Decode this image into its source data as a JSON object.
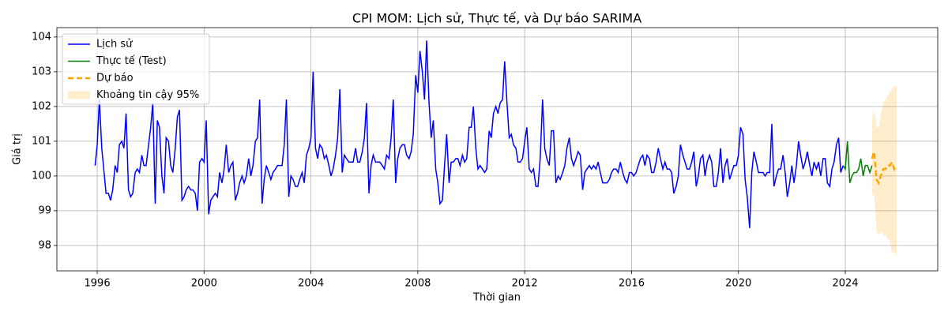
{
  "chart_data": {
    "type": "line",
    "title": "CPI MOM: Lịch sử, Thực tế, và Dự báo SARIMA",
    "xlabel": "Thời gian",
    "ylabel": "Giá trị",
    "xlim": [
      1994.49,
      2027.46
    ],
    "xticks": [
      1996,
      2000,
      2004,
      2008,
      2012,
      2016,
      2020,
      2024
    ],
    "ylim": [
      97.27,
      104.27
    ],
    "yticks": [
      98,
      99,
      100,
      101,
      102,
      103,
      104
    ],
    "grid": true,
    "legend": "upper left",
    "series": [
      {
        "name": "Lịch sử",
        "color": "#0000ff",
        "dash": false,
        "x": [
          1995.92,
          1996,
          1996.08,
          1996.17,
          1996.33,
          1996.42,
          1996.5,
          1996.58,
          1996.67,
          1996.75,
          1996.83,
          1996.92,
          1997,
          1997.08,
          1997.17,
          1997.25,
          1997.33,
          1997.42,
          1997.5,
          1997.58,
          1997.67,
          1997.75,
          1997.83,
          1998,
          1998.08,
          1998.17,
          1998.25,
          1998.33,
          1998.42,
          1998.5,
          1998.58,
          1998.67,
          1998.75,
          1998.83,
          1998.92,
          1999,
          1999.08,
          1999.17,
          1999.25,
          1999.33,
          1999.42,
          1999.5,
          1999.58,
          1999.67,
          1999.75,
          1999.83,
          1999.92,
          2000,
          2000.08,
          2000.17,
          2000.25,
          2000.33,
          2000.42,
          2000.5,
          2000.58,
          2000.67,
          2000.75,
          2000.83,
          2000.92,
          2001,
          2001.08,
          2001.17,
          2001.25,
          2001.33,
          2001.42,
          2001.5,
          2001.58,
          2001.67,
          2001.75,
          2001.83,
          2001.92,
          2002,
          2002.08,
          2002.17,
          2002.25,
          2002.33,
          2002.42,
          2002.5,
          2002.58,
          2002.67,
          2002.75,
          2002.83,
          2002.92,
          2003,
          2003.08,
          2003.17,
          2003.25,
          2003.33,
          2003.42,
          2003.5,
          2003.58,
          2003.67,
          2003.75,
          2003.83,
          2003.92,
          2004,
          2004.08,
          2004.17,
          2004.25,
          2004.33,
          2004.42,
          2004.5,
          2004.58,
          2004.67,
          2004.75,
          2004.83,
          2004.92,
          2005,
          2005.08,
          2005.17,
          2005.25,
          2005.33,
          2005.42,
          2005.5,
          2005.58,
          2005.67,
          2005.75,
          2005.83,
          2005.92,
          2006,
          2006.08,
          2006.17,
          2006.25,
          2006.33,
          2006.42,
          2006.5,
          2006.58,
          2006.67,
          2006.75,
          2006.83,
          2006.92,
          2007,
          2007.08,
          2007.17,
          2007.25,
          2007.33,
          2007.42,
          2007.5,
          2007.58,
          2007.67,
          2007.75,
          2007.83,
          2007.92,
          2008,
          2008.08,
          2008.17,
          2008.25,
          2008.33,
          2008.42,
          2008.5,
          2008.58,
          2008.67,
          2008.75,
          2008.83,
          2008.92,
          2009,
          2009.08,
          2009.17,
          2009.25,
          2009.33,
          2009.42,
          2009.5,
          2009.58,
          2009.67,
          2009.75,
          2009.83,
          2009.92,
          2010,
          2010.08,
          2010.17,
          2010.25,
          2010.33,
          2010.42,
          2010.5,
          2010.58,
          2010.67,
          2010.75,
          2010.83,
          2010.92,
          2011,
          2011.08,
          2011.17,
          2011.25,
          2011.33,
          2011.42,
          2011.5,
          2011.58,
          2011.67,
          2011.75,
          2011.83,
          2011.92,
          2012,
          2012.08,
          2012.17,
          2012.25,
          2012.33,
          2012.42,
          2012.5,
          2012.58,
          2012.67,
          2012.75,
          2012.83,
          2012.92,
          2013,
          2013.08,
          2013.17,
          2013.25,
          2013.33,
          2013.42,
          2013.5,
          2013.58,
          2013.67,
          2013.75,
          2013.83,
          2013.92,
          2014,
          2014.08,
          2014.17,
          2014.25,
          2014.33,
          2014.42,
          2014.5,
          2014.58,
          2014.67,
          2014.75,
          2014.83,
          2014.92,
          2015,
          2015.08,
          2015.17,
          2015.25,
          2015.33,
          2015.42,
          2015.5,
          2015.58,
          2015.67,
          2015.75,
          2015.83,
          2015.92,
          2016,
          2016.08,
          2016.17,
          2016.25,
          2016.33,
          2016.42,
          2016.5,
          2016.58,
          2016.67,
          2016.75,
          2016.83,
          2016.92,
          2017,
          2017.08,
          2017.17,
          2017.25,
          2017.33,
          2017.42,
          2017.5,
          2017.58,
          2017.67,
          2017.75,
          2017.83,
          2017.92,
          2018,
          2018.08,
          2018.17,
          2018.25,
          2018.33,
          2018.42,
          2018.5,
          2018.58,
          2018.67,
          2018.75,
          2018.83,
          2018.92,
          2019,
          2019.08,
          2019.17,
          2019.25,
          2019.33,
          2019.42,
          2019.5,
          2019.58,
          2019.67,
          2019.75,
          2019.83,
          2019.92,
          2020,
          2020.08,
          2020.17,
          2020.25,
          2020.33,
          2020.42,
          2020.5,
          2020.58,
          2020.67,
          2020.75,
          2020.83,
          2020.92,
          2021,
          2021.08,
          2021.17,
          2021.25,
          2021.33,
          2021.42,
          2021.5,
          2021.58,
          2021.67,
          2021.75,
          2021.83,
          2021.92,
          2022,
          2022.08,
          2022.17,
          2022.25,
          2022.33,
          2022.42,
          2022.5,
          2022.58,
          2022.67,
          2022.75,
          2022.83,
          2022.92,
          2023,
          2023.08,
          2023.17,
          2023.25,
          2023.33,
          2023.42,
          2023.5,
          2023.58,
          2023.67,
          2023.75,
          2023.83,
          2023.92
        ],
        "values": [
          100.3,
          100.9,
          102.2,
          100.8,
          99.5,
          99.5,
          99.3,
          99.6,
          100.3,
          100.1,
          100.9,
          101.0,
          100.8,
          101.8,
          99.6,
          99.4,
          99.5,
          100.1,
          100.2,
          100.1,
          100.6,
          100.3,
          100.3,
          101.4,
          102.1,
          99.2,
          101.6,
          101.4,
          100.0,
          99.5,
          101.1,
          101.0,
          100.3,
          100.1,
          100.8,
          101.7,
          101.9,
          99.3,
          99.4,
          99.6,
          99.7,
          99.6,
          99.6,
          99.5,
          99.0,
          100.4,
          100.5,
          100.4,
          101.6,
          98.9,
          99.3,
          99.4,
          99.5,
          99.4,
          100.1,
          99.8,
          100.2,
          100.9,
          100.1,
          100.3,
          100.4,
          99.3,
          99.5,
          99.8,
          100.0,
          99.8,
          100.0,
          100.5,
          100.0,
          100.3,
          101.0,
          101.1,
          102.2,
          99.2,
          99.9,
          100.3,
          100.1,
          99.9,
          100.1,
          100.2,
          100.3,
          100.3,
          100.3,
          100.9,
          102.2,
          99.4,
          100.0,
          99.9,
          99.7,
          99.7,
          99.9,
          100.1,
          99.8,
          100.6,
          100.8,
          101.1,
          103.0,
          100.8,
          100.5,
          100.9,
          100.8,
          100.5,
          100.6,
          100.3,
          100.0,
          100.2,
          100.6,
          101.1,
          102.5,
          100.1,
          100.6,
          100.5,
          100.4,
          100.4,
          100.4,
          100.8,
          100.4,
          100.4,
          100.7,
          101.1,
          102.1,
          99.5,
          100.3,
          100.6,
          100.4,
          100.4,
          100.4,
          100.3,
          100.2,
          100.6,
          100.5,
          101.1,
          102.2,
          99.8,
          100.5,
          100.8,
          100.9,
          100.9,
          100.6,
          100.5,
          100.7,
          101.2,
          102.9,
          102.4,
          103.6,
          103.0,
          102.2,
          103.9,
          102.1,
          101.1,
          101.6,
          100.2,
          99.8,
          99.2,
          99.3,
          100.3,
          101.2,
          99.8,
          100.4,
          100.4,
          100.5,
          100.5,
          100.3,
          100.6,
          100.4,
          100.5,
          101.4,
          101.4,
          102.0,
          100.8,
          100.2,
          100.3,
          100.2,
          100.1,
          100.2,
          101.3,
          101.1,
          101.8,
          102.0,
          101.8,
          102.1,
          102.2,
          103.3,
          102.2,
          101.1,
          101.2,
          100.9,
          100.8,
          100.4,
          100.4,
          100.5,
          101.0,
          101.4,
          100.2,
          100.1,
          100.2,
          99.7,
          99.7,
          100.5,
          102.2,
          100.8,
          100.5,
          100.3,
          101.3,
          101.3,
          99.8,
          100.0,
          99.9,
          100.1,
          100.3,
          100.8,
          101.1,
          100.5,
          100.3,
          100.5,
          100.7,
          100.6,
          99.6,
          100.1,
          100.2,
          100.3,
          100.2,
          100.3,
          100.2,
          100.4,
          100.1,
          99.8,
          99.8,
          99.8,
          99.9,
          100.1,
          100.2,
          100.2,
          100.1,
          100.4,
          100.1,
          99.9,
          99.8,
          100.1,
          100.1,
          100.0,
          100.1,
          100.3,
          100.5,
          100.6,
          100.3,
          100.6,
          100.5,
          100.1,
          100.1,
          100.4,
          100.8,
          100.5,
          100.2,
          100.4,
          100.2,
          100.2,
          100.1,
          99.5,
          99.7,
          100.0,
          100.9,
          100.6,
          100.4,
          100.2,
          100.2,
          100.4,
          100.7,
          99.7,
          100.0,
          100.5,
          100.6,
          100.0,
          100.4,
          100.6,
          100.4,
          99.7,
          99.7,
          100.1,
          100.8,
          99.8,
          100.3,
          100.5,
          99.9,
          100.1,
          100.3,
          100.3,
          100.6,
          101.4,
          101.2,
          99.9,
          99.4,
          98.5,
          100.1,
          100.7,
          100.4,
          100.1,
          100.1,
          100.1,
          100.0,
          100.1,
          100.1,
          101.5,
          99.7,
          100.0,
          100.2,
          100.2,
          100.6,
          100.1,
          99.4,
          99.8,
          100.3,
          99.8,
          100.3,
          101.0,
          100.6,
          100.2,
          100.4,
          100.7,
          100.3,
          100.0,
          100.4,
          100.2,
          100.4,
          100.0,
          100.5,
          100.5,
          99.8,
          99.7,
          100.2,
          100.4,
          100.9,
          101.1,
          100.1,
          100.3
        ]
      },
      {
        "name": "Thực tế (Test)",
        "color": "#008000",
        "dash": false,
        "x": [
          2023.92,
          2024,
          2024.08,
          2024.17,
          2024.25,
          2024.33,
          2024.42,
          2024.5,
          2024.58,
          2024.67,
          2024.75,
          2024.83,
          2024.92,
          2025
        ],
        "values": [
          100.3,
          100.2,
          101.0,
          99.8,
          100.0,
          100.1,
          100.1,
          100.2,
          100.5,
          100.0,
          100.3,
          100.3,
          100.1,
          100.3
        ]
      },
      {
        "name": "Dự báo",
        "color": "#ffa500",
        "dash": true,
        "x": [
          2025,
          2025.08,
          2025.17,
          2025.25,
          2025.33,
          2025.42,
          2025.5,
          2025.58,
          2025.67,
          2025.75,
          2025.83,
          2025.92
        ],
        "values": [
          100.5,
          100.7,
          99.9,
          99.8,
          100.0,
          100.2,
          100.2,
          100.3,
          100.3,
          100.4,
          100.2,
          100.3
        ]
      }
    ],
    "band": {
      "name": "Khoảng tin cậy 95%",
      "color": "#ffa500",
      "x": [
        2025,
        2025.08,
        2025.17,
        2025.25,
        2025.33,
        2025.42,
        2025.5,
        2025.58,
        2025.67,
        2025.75,
        2025.83,
        2025.92
      ],
      "lower": [
        99.4,
        99.5,
        98.4,
        98.3,
        98.4,
        98.3,
        98.3,
        98.2,
        98.1,
        97.8,
        97.8,
        97.7
      ],
      "upper": [
        101.6,
        101.9,
        101.4,
        101.4,
        101.8,
        102.1,
        102.2,
        102.3,
        102.4,
        102.5,
        102.6,
        102.6
      ]
    }
  }
}
